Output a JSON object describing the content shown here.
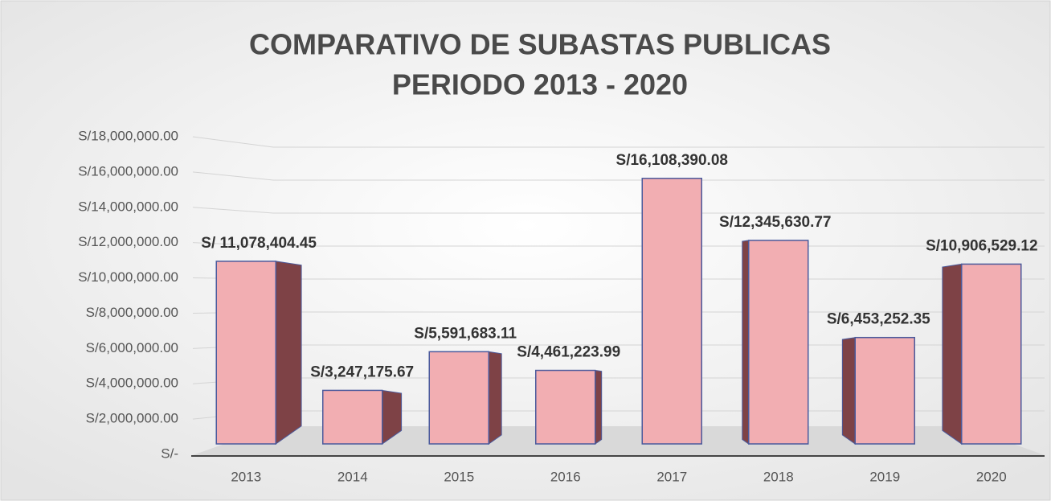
{
  "chart_data": {
    "type": "bar3d",
    "title": "COMPARATIVO DE SUBASTAS PUBLICAS",
    "subtitle": "PERIODO 2013 - 2020",
    "categories": [
      "2013",
      "2014",
      "2015",
      "2016",
      "2017",
      "2018",
      "2019",
      "2020"
    ],
    "values": [
      11078404.45,
      3247175.67,
      5591683.11,
      4461223.99,
      16108390.08,
      12345630.77,
      6453252.35,
      10906529.12
    ],
    "value_labels": [
      "S/ 11,078,404.45",
      "S/3,247,175.67",
      "S/5,591,683.11",
      "S/4,461,223.99",
      "S/16,108,390.08",
      "S/12,345,630.77",
      "S/6,453,252.35",
      "S/10,906,529.12"
    ],
    "color": "#f2aeb2",
    "side_color": "#7e4246",
    "edge_color": "#4b5a9c",
    "ylim": [
      0,
      18000000
    ],
    "yticks": [
      {
        "value": 0,
        "label": "S/-"
      },
      {
        "value": 2000000,
        "label": "S/2,000,000.00"
      },
      {
        "value": 4000000,
        "label": "S/4,000,000.00"
      },
      {
        "value": 6000000,
        "label": "S/6,000,000.00"
      },
      {
        "value": 8000000,
        "label": "S/8,000,000.00"
      },
      {
        "value": 10000000,
        "label": "S/10,000,000.00"
      },
      {
        "value": 12000000,
        "label": "S/12,000,000.00"
      },
      {
        "value": 14000000,
        "label": "S/14,000,000.00"
      },
      {
        "value": 16000000,
        "label": "S/16,000,000.00"
      },
      {
        "value": 18000000,
        "label": "S/18,000,000.00"
      }
    ],
    "grid": true
  }
}
